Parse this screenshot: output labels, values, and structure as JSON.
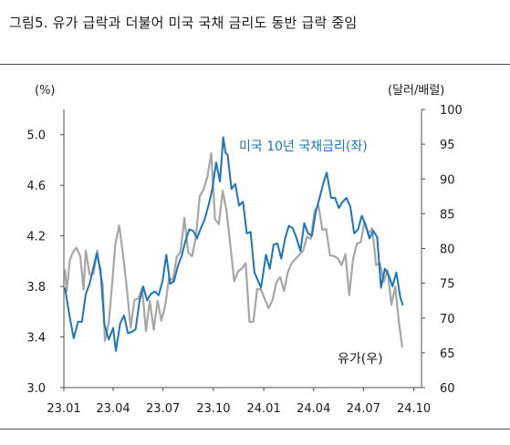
{
  "figure": {
    "title": "그림5.  유가 급락과 더불어 미국 국채 금리도 동반 급락 중임"
  },
  "chart_data": {
    "type": "line",
    "left_axis": {
      "unit": "(%)",
      "ylim": [
        3.0,
        5.2
      ],
      "ticks": [
        "3.0",
        "3.4",
        "3.8",
        "4.2",
        "4.6",
        "5.0"
      ]
    },
    "right_axis": {
      "unit": "(달러/배럴)",
      "ylim": [
        60,
        100
      ],
      "ticks": [
        "60",
        "65",
        "70",
        "75",
        "80",
        "85",
        "90",
        "95",
        "100"
      ]
    },
    "x_ticks": [
      "23.01",
      "23.04",
      "23.07",
      "23.10",
      "24.01",
      "24.04",
      "24.07",
      "24.10"
    ],
    "x_range": [
      "2023-01",
      "2024-10"
    ],
    "series": [
      {
        "name": "미국 10년 국채금리(좌)",
        "axis": "left",
        "color": "#1b75bb",
        "points": [
          [
            "2023-01-03",
            3.79
          ],
          [
            "2023-01-12",
            3.55
          ],
          [
            "2023-01-19",
            3.39
          ],
          [
            "2023-01-27",
            3.52
          ],
          [
            "2023-02-03",
            3.52
          ],
          [
            "2023-02-10",
            3.74
          ],
          [
            "2023-02-17",
            3.82
          ],
          [
            "2023-02-24",
            3.95
          ],
          [
            "2023-03-02",
            4.06
          ],
          [
            "2023-03-09",
            3.93
          ],
          [
            "2023-03-16",
            3.5
          ],
          [
            "2023-03-24",
            3.38
          ],
          [
            "2023-04-01",
            3.47
          ],
          [
            "2023-04-06",
            3.29
          ],
          [
            "2023-04-14",
            3.51
          ],
          [
            "2023-04-21",
            3.57
          ],
          [
            "2023-04-28",
            3.43
          ],
          [
            "2023-05-05",
            3.44
          ],
          [
            "2023-05-12",
            3.46
          ],
          [
            "2023-05-19",
            3.68
          ],
          [
            "2023-05-26",
            3.8
          ],
          [
            "2023-06-02",
            3.69
          ],
          [
            "2023-06-09",
            3.74
          ],
          [
            "2023-06-16",
            3.76
          ],
          [
            "2023-06-23",
            3.73
          ],
          [
            "2023-06-30",
            3.84
          ],
          [
            "2023-07-07",
            4.05
          ],
          [
            "2023-07-14",
            3.82
          ],
          [
            "2023-07-21",
            3.84
          ],
          [
            "2023-07-28",
            3.96
          ],
          [
            "2023-08-04",
            4.04
          ],
          [
            "2023-08-11",
            4.16
          ],
          [
            "2023-08-18",
            4.25
          ],
          [
            "2023-08-25",
            4.24
          ],
          [
            "2023-09-01",
            4.18
          ],
          [
            "2023-09-08",
            4.26
          ],
          [
            "2023-09-15",
            4.33
          ],
          [
            "2023-09-22",
            4.44
          ],
          [
            "2023-09-29",
            4.57
          ],
          [
            "2023-10-06",
            4.78
          ],
          [
            "2023-10-13",
            4.63
          ],
          [
            "2023-10-19",
            4.98
          ],
          [
            "2023-10-23",
            4.86
          ],
          [
            "2023-10-27",
            4.84
          ],
          [
            "2023-11-03",
            4.57
          ],
          [
            "2023-11-10",
            4.61
          ],
          [
            "2023-11-17",
            4.44
          ],
          [
            "2023-11-24",
            4.47
          ],
          [
            "2023-12-01",
            4.22
          ],
          [
            "2023-12-08",
            4.23
          ],
          [
            "2023-12-15",
            3.91
          ],
          [
            "2023-12-27",
            3.79
          ],
          [
            "2024-01-05",
            4.05
          ],
          [
            "2024-01-12",
            3.94
          ],
          [
            "2024-01-19",
            4.13
          ],
          [
            "2024-01-26",
            4.14
          ],
          [
            "2024-02-02",
            4.02
          ],
          [
            "2024-02-09",
            4.18
          ],
          [
            "2024-02-16",
            4.28
          ],
          [
            "2024-02-23",
            4.26
          ],
          [
            "2024-03-01",
            4.18
          ],
          [
            "2024-03-08",
            4.08
          ],
          [
            "2024-03-15",
            4.3
          ],
          [
            "2024-03-22",
            4.22
          ],
          [
            "2024-03-29",
            4.2
          ],
          [
            "2024-04-05",
            4.39
          ],
          [
            "2024-04-12",
            4.5
          ],
          [
            "2024-04-19",
            4.62
          ],
          [
            "2024-04-25",
            4.7
          ],
          [
            "2024-05-03",
            4.5
          ],
          [
            "2024-05-10",
            4.5
          ],
          [
            "2024-05-17",
            4.42
          ],
          [
            "2024-05-24",
            4.47
          ],
          [
            "2024-05-31",
            4.5
          ],
          [
            "2024-06-07",
            4.43
          ],
          [
            "2024-06-14",
            4.22
          ],
          [
            "2024-06-21",
            4.25
          ],
          [
            "2024-06-28",
            4.36
          ],
          [
            "2024-07-05",
            4.28
          ],
          [
            "2024-07-12",
            4.18
          ],
          [
            "2024-07-19",
            4.24
          ],
          [
            "2024-07-26",
            4.19
          ],
          [
            "2024-08-02",
            3.79
          ],
          [
            "2024-08-09",
            3.94
          ],
          [
            "2024-08-16",
            3.89
          ],
          [
            "2024-08-23",
            3.8
          ],
          [
            "2024-08-30",
            3.91
          ],
          [
            "2024-09-06",
            3.72
          ],
          [
            "2024-09-11",
            3.65
          ]
        ]
      },
      {
        "name": "유가(우)",
        "axis": "right",
        "color": "#a6a6a6",
        "points": [
          [
            "2023-01-03",
            77.0
          ],
          [
            "2023-01-06",
            73.8
          ],
          [
            "2023-01-12",
            78.4
          ],
          [
            "2023-01-18",
            79.5
          ],
          [
            "2023-01-24",
            80.1
          ],
          [
            "2023-01-31",
            78.9
          ],
          [
            "2023-02-06",
            74.1
          ],
          [
            "2023-02-10",
            79.7
          ],
          [
            "2023-02-17",
            76.3
          ],
          [
            "2023-02-24",
            76.3
          ],
          [
            "2023-03-03",
            79.7
          ],
          [
            "2023-03-08",
            76.7
          ],
          [
            "2023-03-13",
            74.8
          ],
          [
            "2023-03-17",
            66.7
          ],
          [
            "2023-03-24",
            69.3
          ],
          [
            "2023-03-31",
            75.7
          ],
          [
            "2023-04-05",
            80.6
          ],
          [
            "2023-04-12",
            83.3
          ],
          [
            "2023-04-19",
            79.2
          ],
          [
            "2023-04-26",
            74.3
          ],
          [
            "2023-05-03",
            68.6
          ],
          [
            "2023-05-10",
            72.6
          ],
          [
            "2023-05-17",
            72.8
          ],
          [
            "2023-05-24",
            74.3
          ],
          [
            "2023-05-31",
            68.1
          ],
          [
            "2023-06-07",
            72.5
          ],
          [
            "2023-06-14",
            68.3
          ],
          [
            "2023-06-21",
            72.5
          ],
          [
            "2023-06-28",
            69.6
          ],
          [
            "2023-07-05",
            71.8
          ],
          [
            "2023-07-12",
            75.8
          ],
          [
            "2023-07-19",
            75.4
          ],
          [
            "2023-07-26",
            78.8
          ],
          [
            "2023-08-02",
            79.5
          ],
          [
            "2023-08-09",
            84.4
          ],
          [
            "2023-08-16",
            79.4
          ],
          [
            "2023-08-23",
            78.9
          ],
          [
            "2023-08-30",
            81.6
          ],
          [
            "2023-09-06",
            87.5
          ],
          [
            "2023-09-13",
            88.5
          ],
          [
            "2023-09-20",
            90.3
          ],
          [
            "2023-09-27",
            93.7
          ],
          [
            "2023-10-04",
            84.2
          ],
          [
            "2023-10-11",
            83.5
          ],
          [
            "2023-10-18",
            88.3
          ],
          [
            "2023-10-25",
            85.4
          ],
          [
            "2023-11-01",
            80.4
          ],
          [
            "2023-11-08",
            75.3
          ],
          [
            "2023-11-15",
            76.7
          ],
          [
            "2023-11-22",
            77.1
          ],
          [
            "2023-11-29",
            77.9
          ],
          [
            "2023-12-06",
            69.4
          ],
          [
            "2023-12-13",
            69.5
          ],
          [
            "2023-12-20",
            74.2
          ],
          [
            "2023-12-27",
            74.1
          ],
          [
            "2024-01-03",
            72.7
          ],
          [
            "2024-01-10",
            71.4
          ],
          [
            "2024-01-17",
            72.6
          ],
          [
            "2024-01-24",
            75.1
          ],
          [
            "2024-01-31",
            75.9
          ],
          [
            "2024-02-07",
            73.9
          ],
          [
            "2024-02-14",
            76.6
          ],
          [
            "2024-02-21",
            77.9
          ],
          [
            "2024-02-28",
            78.5
          ],
          [
            "2024-03-06",
            79.1
          ],
          [
            "2024-03-13",
            79.7
          ],
          [
            "2024-03-20",
            81.7
          ],
          [
            "2024-03-27",
            81.4
          ],
          [
            "2024-04-03",
            85.4
          ],
          [
            "2024-04-10",
            86.2
          ],
          [
            "2024-04-17",
            82.7
          ],
          [
            "2024-04-24",
            82.8
          ],
          [
            "2024-05-01",
            79.0
          ],
          [
            "2024-05-08",
            78.9
          ],
          [
            "2024-05-15",
            78.6
          ],
          [
            "2024-05-22",
            77.6
          ],
          [
            "2024-05-29",
            79.2
          ],
          [
            "2024-06-05",
            73.3
          ],
          [
            "2024-06-12",
            78.5
          ],
          [
            "2024-06-19",
            80.7
          ],
          [
            "2024-06-26",
            80.9
          ],
          [
            "2024-07-03",
            83.9
          ],
          [
            "2024-07-10",
            82.1
          ],
          [
            "2024-07-17",
            82.9
          ],
          [
            "2024-07-24",
            77.6
          ],
          [
            "2024-07-31",
            77.9
          ],
          [
            "2024-08-07",
            75.2
          ],
          [
            "2024-08-14",
            76.9
          ],
          [
            "2024-08-21",
            71.9
          ],
          [
            "2024-08-28",
            74.5
          ],
          [
            "2024-09-04",
            69.2
          ],
          [
            "2024-09-10",
            65.8
          ]
        ]
      }
    ],
    "annotations": [
      {
        "text": "미국 10년 국채금리(좌)",
        "series": 0
      },
      {
        "text": "유가(우)",
        "series": 1
      }
    ]
  }
}
